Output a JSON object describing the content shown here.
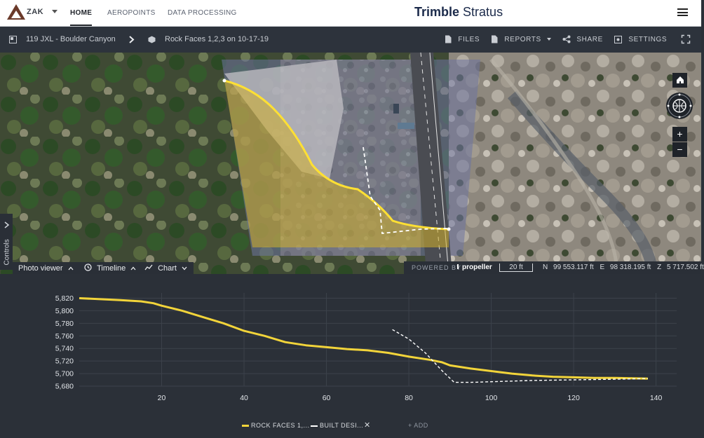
{
  "nav": {
    "logo_text": "ZAK",
    "items": [
      {
        "label": "HOME",
        "active": true
      },
      {
        "label": "AEROPOINTS",
        "active": false
      },
      {
        "label": "DATA PROCESSING",
        "active": false
      }
    ],
    "brand_bold": "Trimble",
    "brand_light": "Stratus"
  },
  "toolbar": {
    "project": "119 JXL - Boulder Canyon",
    "survey": "Rock Faces 1,2,3 on 10-17-19",
    "files_label": "FILES",
    "reports_label": "REPORTS",
    "share_label": "SHARE",
    "settings_label": "SETTINGS"
  },
  "map": {
    "controls_label": "Controls",
    "viewer_tabs": {
      "photo_viewer": "Photo viewer",
      "timeline": "Timeline",
      "chart": "Chart"
    },
    "powered_by": "POWERED BY",
    "propeller": "propeller",
    "scale": "20 ft",
    "coords": {
      "n_label": "N",
      "n_value": "99 553.117 ft",
      "e_label": "E",
      "e_value": "98 318.195 ft",
      "z_label": "Z",
      "z_value": "5 717.502 ft"
    },
    "zoom_in": "+",
    "zoom_out": "−"
  },
  "chart_data": {
    "type": "line",
    "xlim": [
      0,
      145
    ],
    "ylim": [
      5680,
      5825
    ],
    "x_ticks": [
      20,
      40,
      60,
      80,
      100,
      120,
      140
    ],
    "y_ticks": [
      5820,
      5800,
      5780,
      5760,
      5740,
      5720,
      5700,
      5680
    ],
    "grid": true,
    "series": [
      {
        "name": "ROCK FACES 1,...",
        "color": "#f2d43a",
        "style": "solid",
        "x": [
          0,
          10,
          15,
          18,
          20,
          25,
          30,
          35,
          40,
          45,
          50,
          55,
          60,
          65,
          70,
          75,
          80,
          85,
          88,
          90,
          95,
          100,
          105,
          110,
          115,
          120,
          125,
          130,
          138
        ],
        "y": [
          5820,
          5817,
          5815,
          5812,
          5808,
          5800,
          5790,
          5780,
          5768,
          5760,
          5750,
          5745,
          5742,
          5739,
          5737,
          5733,
          5727,
          5722,
          5718,
          5713,
          5708,
          5704,
          5700,
          5697,
          5695,
          5694,
          5693,
          5693,
          5692
        ]
      },
      {
        "name": "BUILT DESI...",
        "color": "#ffffff",
        "style": "dashed",
        "x": [
          76,
          80,
          84,
          88,
          91,
          95,
          100,
          110,
          120,
          130,
          138
        ],
        "y": [
          5770,
          5755,
          5733,
          5705,
          5686,
          5686,
          5687,
          5689,
          5690,
          5691,
          5692
        ]
      }
    ],
    "legend_close": "✕",
    "add_label": "+ ADD"
  }
}
